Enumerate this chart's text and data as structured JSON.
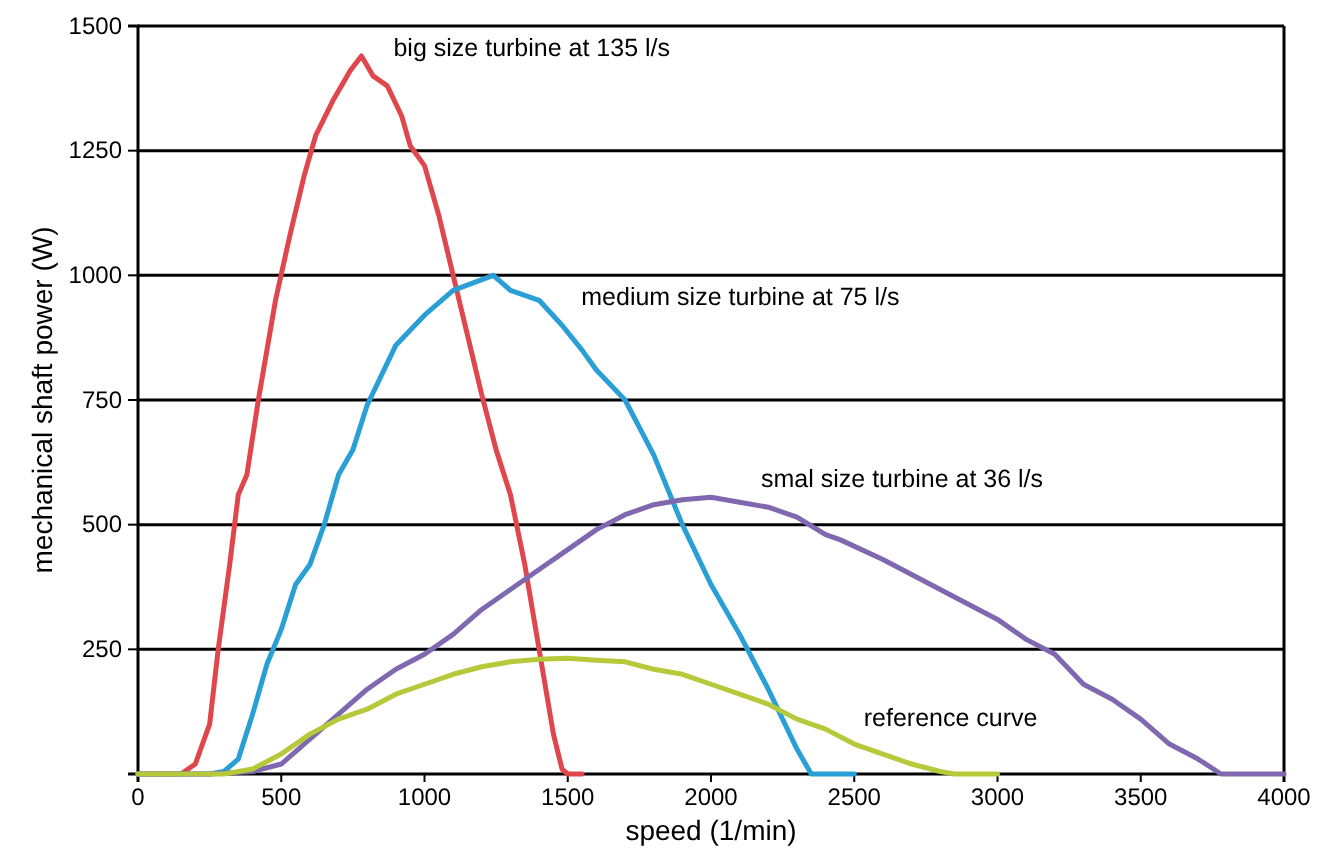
{
  "chart_data": {
    "type": "line",
    "xlabel": "speed (1/min)",
    "ylabel": "mechanical shaft power (W)",
    "xlim": [
      0,
      4000
    ],
    "ylim": [
      0,
      1500
    ],
    "xticks": [
      0,
      500,
      1000,
      1500,
      2000,
      2500,
      3000,
      3500,
      4000
    ],
    "yticks": [
      250,
      500,
      750,
      1000,
      1250,
      1500
    ],
    "grid": "y",
    "marker": "none",
    "line_style": "solid",
    "series": [
      {
        "name": "big size turbine at 135 l/s",
        "color": "#e0474c",
        "x": [
          0,
          150,
          200,
          250,
          280,
          320,
          350,
          380,
          420,
          480,
          530,
          580,
          620,
          680,
          740,
          780,
          820,
          870,
          920,
          950,
          1000,
          1050,
          1100,
          1150,
          1200,
          1250,
          1300,
          1350,
          1400,
          1450,
          1480,
          1500,
          1550
        ],
        "values": [
          0,
          0,
          20,
          100,
          250,
          420,
          560,
          600,
          750,
          950,
          1080,
          1200,
          1280,
          1350,
          1410,
          1440,
          1400,
          1380,
          1320,
          1260,
          1220,
          1120,
          1000,
          880,
          760,
          650,
          560,
          420,
          250,
          80,
          10,
          0,
          0
        ]
      },
      {
        "name": "medium size turbine at 75 l/s",
        "color": "#2a9fd6",
        "x": [
          0,
          250,
          300,
          350,
          400,
          450,
          500,
          550,
          600,
          650,
          700,
          750,
          800,
          850,
          900,
          1000,
          1100,
          1240,
          1300,
          1400,
          1480,
          1550,
          1600,
          1700,
          1800,
          1900,
          2000,
          2100,
          2200,
          2300,
          2350,
          2500
        ],
        "values": [
          0,
          0,
          5,
          30,
          120,
          220,
          290,
          380,
          420,
          500,
          600,
          650,
          740,
          800,
          860,
          920,
          970,
          1000,
          970,
          950,
          900,
          850,
          810,
          750,
          640,
          500,
          380,
          280,
          170,
          50,
          0,
          0
        ]
      },
      {
        "name": "smal size turbine at 36 l/s",
        "color": "#8068b0",
        "x": [
          0,
          250,
          400,
          500,
          600,
          700,
          800,
          900,
          1000,
          1100,
          1200,
          1300,
          1400,
          1500,
          1600,
          1700,
          1800,
          1900,
          2000,
          2100,
          2200,
          2300,
          2400,
          2450,
          2600,
          2800,
          3000,
          3100,
          3200,
          3300,
          3400,
          3500,
          3600,
          3700,
          3780,
          4000
        ],
        "values": [
          0,
          0,
          5,
          20,
          70,
          120,
          170,
          210,
          240,
          280,
          330,
          370,
          410,
          450,
          490,
          520,
          540,
          550,
          555,
          545,
          535,
          515,
          480,
          470,
          430,
          370,
          310,
          270,
          240,
          180,
          150,
          110,
          60,
          30,
          0,
          0
        ]
      },
      {
        "name": "reference curve",
        "color": "#b5c93a",
        "x": [
          0,
          300,
          400,
          500,
          600,
          700,
          800,
          900,
          1000,
          1100,
          1200,
          1300,
          1400,
          1500,
          1600,
          1700,
          1800,
          1900,
          2000,
          2100,
          2200,
          2300,
          2400,
          2500,
          2600,
          2700,
          2800,
          2850,
          3000
        ],
        "values": [
          0,
          0,
          10,
          40,
          80,
          110,
          130,
          160,
          180,
          200,
          215,
          225,
          230,
          232,
          228,
          225,
          210,
          200,
          180,
          160,
          140,
          110,
          90,
          60,
          40,
          20,
          5,
          0,
          0
        ]
      }
    ]
  }
}
